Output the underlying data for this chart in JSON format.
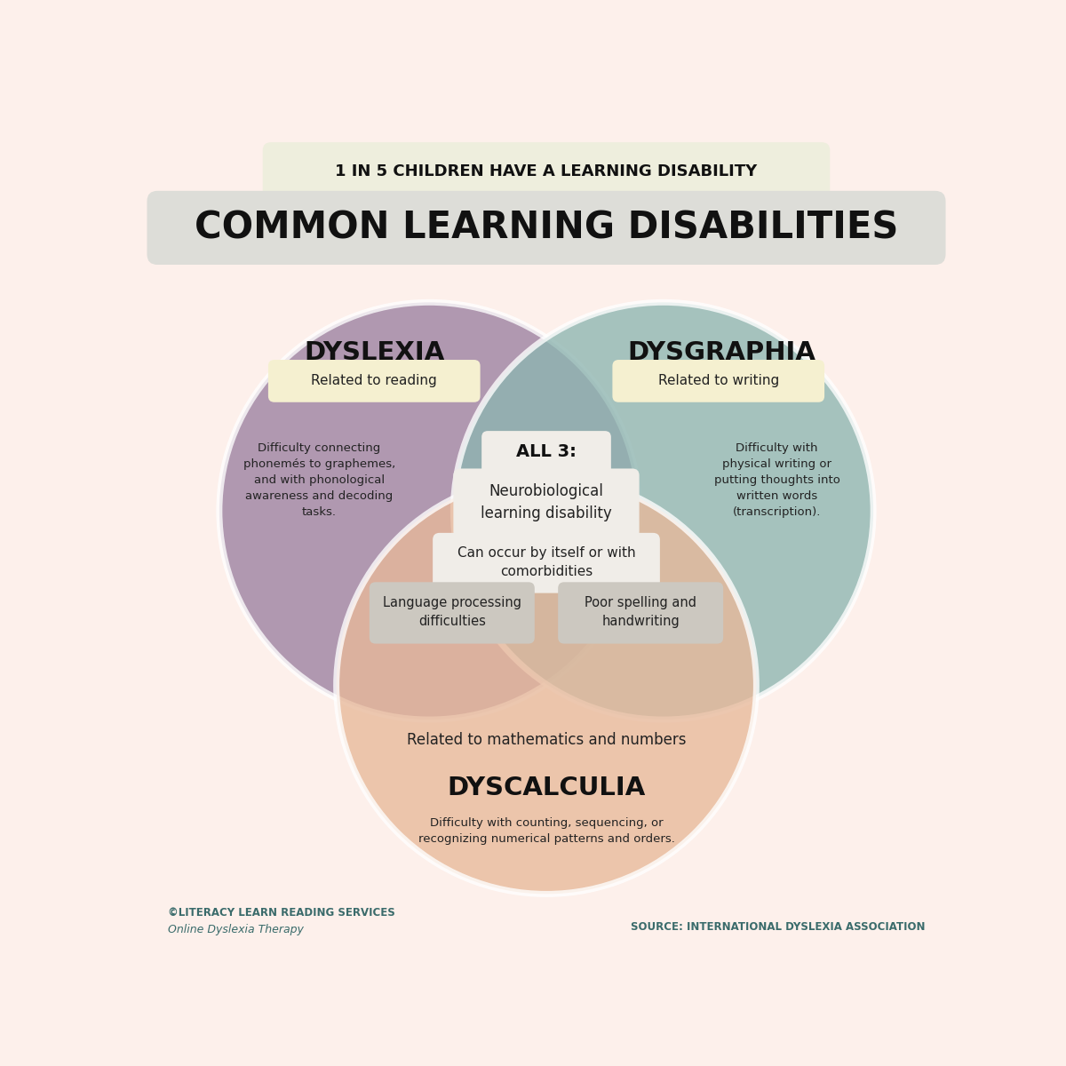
{
  "bg_color": "#fdf0eb",
  "title_banner_color": "#eeeedd",
  "title_banner_text": "1 IN 5 CHILDREN HAVE A LEARNING DISABILITY",
  "subtitle_banner_color": "#ddddd8",
  "subtitle_text": "COMMON LEARNING DISABILITIES",
  "dyslexia_color": "#9b7fa0",
  "dysgraphia_color": "#8db5b0",
  "dyscalculia_color": "#e8b99a",
  "circle_alpha": 0.78,
  "circle_edge_color": "#ffffff",
  "circle_linewidth": 5,
  "dyslexia_label": "DYSLEXIA",
  "dysgraphia_label": "DYSGRAPHIA",
  "dyscalculia_label": "DYSCALCULIA",
  "dyslexia_sub": "Related to reading",
  "dysgraphia_sub": "Related to writing",
  "dyscalculia_sub": "Related to mathematics and numbers",
  "dyslexia_desc": "Difficulty connecting\nphonemés to graphemes,\nand with phonological\nawareness and decoding\ntasks.",
  "dysgraphia_desc": "Difficulty with\nphysical writing or\nputting thoughts into\nwritten words\n(transcription).",
  "dyscalculia_desc": "Difficulty with counting, sequencing, or\nrecognizing numerical patterns and orders.",
  "all3_label": "ALL 3:",
  "all3_item1": "Neurobiological\nlearning disability",
  "all3_item2": "Can occur by itself or with\ncomorbidities",
  "overlap_left": "Language processing\ndifficulties",
  "overlap_right": "Poor spelling and\nhandwriting",
  "footer_left1": "©LITERACY LEARN READING SERVICES",
  "footer_left2": "Online Dyslexia Therapy",
  "footer_right": "SOURCE: INTERNATIONAL DYSLEXIA ASSOCIATION",
  "label_box_color": "#f5f0d0",
  "center_box_color": "#f0ede8",
  "overlap_box_color": "#ccc8c0"
}
